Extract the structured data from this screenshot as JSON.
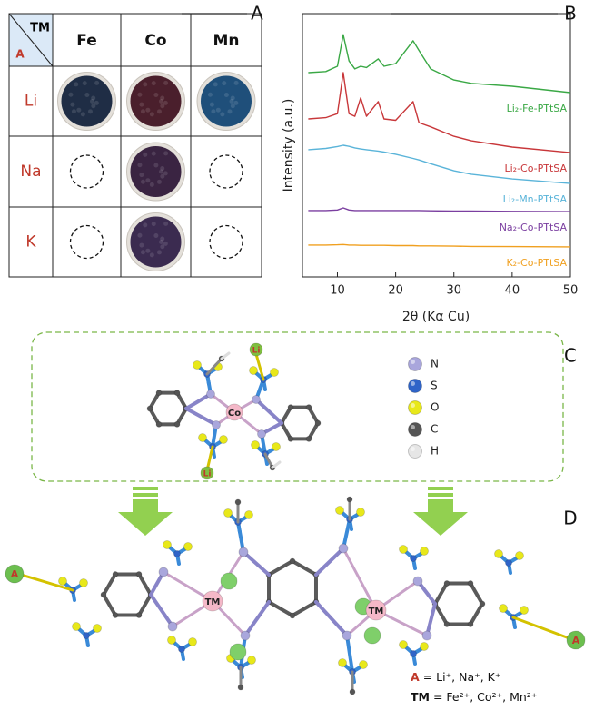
{
  "panels": {
    "a": "A",
    "b": "B",
    "c": "C",
    "d": "D"
  },
  "table": {
    "corner_top": "TM",
    "corner_bottom": "A",
    "columns": [
      "Fe",
      "Co",
      "Mn"
    ],
    "rows": [
      {
        "label": "Li",
        "cells": [
          "#1f2d45",
          "#4a1f2c",
          "#1f4f7a"
        ]
      },
      {
        "label": "Na",
        "cells": [
          null,
          "#3a2442",
          null
        ]
      },
      {
        "label": "K",
        "cells": [
          null,
          "#3b2b50",
          null
        ]
      }
    ]
  },
  "chart_data": {
    "type": "line",
    "xlabel": "2θ (Kα Cu)",
    "ylabel": "Intensity (a.u.)",
    "x": [
      5,
      8,
      10,
      11,
      12,
      13,
      14,
      15,
      17,
      18,
      20,
      23,
      24,
      26,
      30,
      33,
      40,
      50
    ],
    "xlim": [
      4,
      50
    ],
    "xticks": [
      10,
      20,
      30,
      40,
      50
    ],
    "ylim": [
      0,
      100
    ],
    "series": [
      {
        "name": "Li₂-Fe-PTtSA",
        "color": "#3aa845",
        "values": [
          77.6,
          78,
          80,
          92,
          82,
          79,
          80,
          79.5,
          82.8,
          80,
          81,
          89.7,
          86,
          79,
          74.8,
          73.5,
          72.4,
          70
        ]
      },
      {
        "name": "Li₂-Co-PTtSA",
        "color": "#c8373a",
        "values": [
          60,
          60.5,
          62,
          77.6,
          62,
          61,
          68,
          61,
          66.6,
          60,
          59.5,
          66.6,
          58.6,
          57,
          53.4,
          51.7,
          49.3,
          47.2
        ]
      },
      {
        "name": "Li₂-Mn-PTtSA",
        "color": "#5ab4d9",
        "values": [
          48.3,
          48.8,
          49.5,
          50,
          49.6,
          49,
          48.6,
          48.3,
          47.8,
          47.4,
          46.6,
          45,
          44.4,
          43,
          40.3,
          39,
          37.2,
          35.5
        ]
      },
      {
        "name": "Na₂-Co-PTtSA",
        "color": "#7b3fa0",
        "values": [
          25.2,
          25.2,
          25.4,
          26.2,
          25.4,
          25.2,
          25.2,
          25.2,
          25.2,
          25.2,
          25.2,
          25.2,
          25.2,
          25.1,
          25,
          25,
          24.9,
          24.8
        ]
      },
      {
        "name": "K₂-Co-PTtSA",
        "color": "#f0a020",
        "values": [
          12.1,
          12.1,
          12.2,
          12.3,
          12.1,
          12.1,
          12,
          12,
          12,
          12,
          11.9,
          11.9,
          11.8,
          11.8,
          11.7,
          11.6,
          11.5,
          11.4
        ]
      }
    ]
  },
  "structure": {
    "center_label": "Co",
    "alkali_label": "Li",
    "atoms": [
      {
        "symbol": "N",
        "color": "#a9a6dc"
      },
      {
        "symbol": "S",
        "color": "#2f64c8"
      },
      {
        "symbol": "O",
        "color": "#e8e81a"
      },
      {
        "symbol": "C",
        "color": "#555555"
      },
      {
        "symbol": "H",
        "color": "#e6e6e6"
      }
    ]
  },
  "framework": {
    "tm_label": "TM",
    "a_label": "A",
    "legend": [
      {
        "symbol": "A",
        "text": "= Li⁺, Na⁺, K⁺"
      },
      {
        "symbol": "TM",
        "text": "= Fe²⁺, Co²⁺, Mn²⁺"
      }
    ]
  }
}
